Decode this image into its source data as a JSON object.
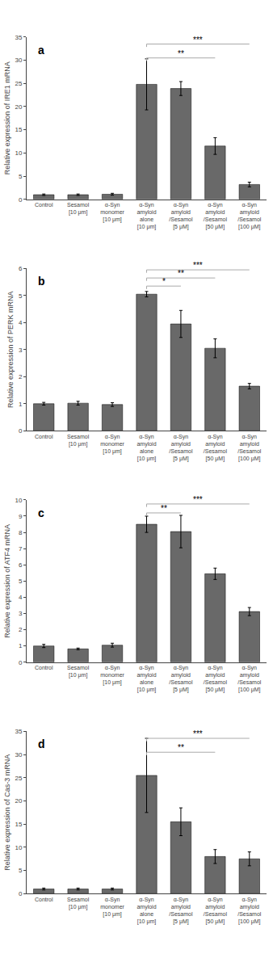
{
  "chart_data": [
    {
      "type": "bar",
      "title": "a",
      "ylabel": "Relative expression of IRE1 mRNA",
      "categories": [
        "Control",
        "Sesamol\n[10 μm]",
        "α-Syn\nmonomer\n[10 μm]",
        "α-Syn\namyloid\nalone\n[10 μm]",
        "α-Syn\namyloid\n/Sesamol\n[5 μM]",
        "α-Syn\namyloid\n/Sesamol\n[50 μM]",
        "α-Syn\namyloid\n/Sesamol\n[100 μM]"
      ],
      "values": [
        1.0,
        1.0,
        1.1,
        24.8,
        23.9,
        11.5,
        3.2
      ],
      "errors": [
        0.15,
        0.15,
        0.2,
        5.5,
        1.5,
        1.8,
        0.5
      ],
      "color": "#696969",
      "ylim": [
        0,
        35
      ],
      "yticks": [
        0,
        5,
        10,
        15,
        20,
        25,
        30,
        35
      ],
      "grid": false,
      "significance": [
        {
          "from": "α-Syn\namyloid\nalone\n[10 μm]",
          "to": "α-Syn\namyloid\n/Sesamol\n[50 μM]",
          "y": 30.5,
          "label": "**",
          "color": "#aaaaaa"
        },
        {
          "from": "α-Syn\namyloid\nalone\n[10 μm]",
          "to": "α-Syn\namyloid\n/Sesamol\n[100 μM]",
          "y": 33.5,
          "label": "***",
          "color": "#aaaaaa"
        }
      ]
    },
    {
      "type": "bar",
      "title": "b",
      "ylabel": "Relative expression of PERK mRNA",
      "categories": [
        "Control",
        "Sesamol\n[10 μm]",
        "α-Syn\nmonomer\n[10 μm]",
        "α-Syn\namyloid\nalone\n[10 μm]",
        "α-Syn\namyloid\n/Sesamol\n[5 μM]",
        "α-Syn\namyloid\n/Sesamol\n[50 μM]",
        "α-Syn\namyloid\n/Sesamol\n[100 μM]"
      ],
      "values": [
        1.0,
        1.02,
        0.97,
        5.05,
        3.95,
        3.05,
        1.65
      ],
      "errors": [
        0.05,
        0.07,
        0.07,
        0.1,
        0.5,
        0.35,
        0.1
      ],
      "color": "#696969",
      "ylim": [
        0,
        6
      ],
      "yticks": [
        0,
        1,
        2,
        3,
        4,
        5,
        6
      ],
      "grid": false,
      "significance": [
        {
          "from": "α-Syn\namyloid\nalone\n[10 μm]",
          "to": "α-Syn\namyloid\n/Sesamol\n[5 μM]",
          "y": 5.35,
          "label": "*",
          "color": "#aaaaaa"
        },
        {
          "from": "α-Syn\namyloid\nalone\n[10 μm]",
          "to": "α-Syn\namyloid\n/Sesamol\n[50 μM]",
          "y": 5.65,
          "label": "**",
          "color": "#aaaaaa"
        },
        {
          "from": "α-Syn\namyloid\nalone\n[10 μm]",
          "to": "α-Syn\namyloid\n/Sesamol\n[100 μM]",
          "y": 5.95,
          "label": "***",
          "color": "#aaaaaa"
        }
      ]
    },
    {
      "type": "bar",
      "title": "c",
      "ylabel": "Relative expression of ATF4 mRNA",
      "categories": [
        "Control",
        "Sesamol\n[10 μm]",
        "α-Syn\nmonomer\n[10 μm]",
        "α-Syn\namyloid\nalone\n[10 μm]",
        "α-Syn\namyloid\n/Sesamol\n[5 μM]",
        "α-Syn\namyloid\n/Sesamol\n[50 μM]",
        "α-Syn\namyloid\n/Sesamol\n[100 μM]"
      ],
      "values": [
        1.0,
        0.82,
        1.05,
        8.5,
        8.05,
        5.45,
        3.12
      ],
      "errors": [
        0.1,
        0.05,
        0.12,
        0.5,
        1.0,
        0.35,
        0.25
      ],
      "color": "#696969",
      "ylim": [
        0,
        10
      ],
      "yticks": [
        0,
        1,
        2,
        3,
        4,
        5,
        6,
        7,
        8,
        9,
        10
      ],
      "grid": false,
      "significance": [
        {
          "from": "α-Syn\namyloid\nalone\n[10 μm]",
          "to": "α-Syn\namyloid\n/Sesamol\n[5 μM]",
          "y": 9.2,
          "label": "**",
          "color": "#aaaaaa"
        },
        {
          "from": "α-Syn\namyloid\nalone\n[10 μm]",
          "to": "α-Syn\namyloid\n/Sesamol\n[100 μM]",
          "y": 9.75,
          "label": "***",
          "color": "#aaaaaa"
        }
      ]
    },
    {
      "type": "bar",
      "title": "d",
      "ylabel": "Relative expression of Cas-3 mRNA",
      "categories": [
        "Control",
        "Sesamol\n[10 μm]",
        "α-Syn\nmonomer\n[10 μm]",
        "α-Syn\namyloid\nalone\n[10 μm]",
        "α-Syn\namyloid\n/Sesamol\n[5 μM]",
        "α-Syn\namyloid\n/Sesamol\n[50 μM]",
        "α-Syn\namyloid\n/Sesamol\n[100 μM]"
      ],
      "values": [
        1.0,
        1.0,
        1.0,
        25.5,
        15.5,
        8.0,
        7.5
      ],
      "errors": [
        0.2,
        0.2,
        0.2,
        8.0,
        3.0,
        1.5,
        1.5
      ],
      "color": "#696969",
      "ylim": [
        0,
        35
      ],
      "yticks": [
        0,
        5,
        10,
        15,
        20,
        25,
        30,
        35
      ],
      "grid": false,
      "significance": [
        {
          "from": "α-Syn\namyloid\nalone\n[10 μm]",
          "to": "α-Syn\namyloid\n/Sesamol\n[50 μM]",
          "y": 30.5,
          "label": "**",
          "color": "#aaaaaa"
        },
        {
          "from": "α-Syn\namyloid\nalone\n[10 μm]",
          "to": "α-Syn\namyloid\n/Sesamol\n[100 μM]",
          "y": 33.5,
          "label": "***",
          "color": "#aaaaaa"
        }
      ]
    }
  ]
}
